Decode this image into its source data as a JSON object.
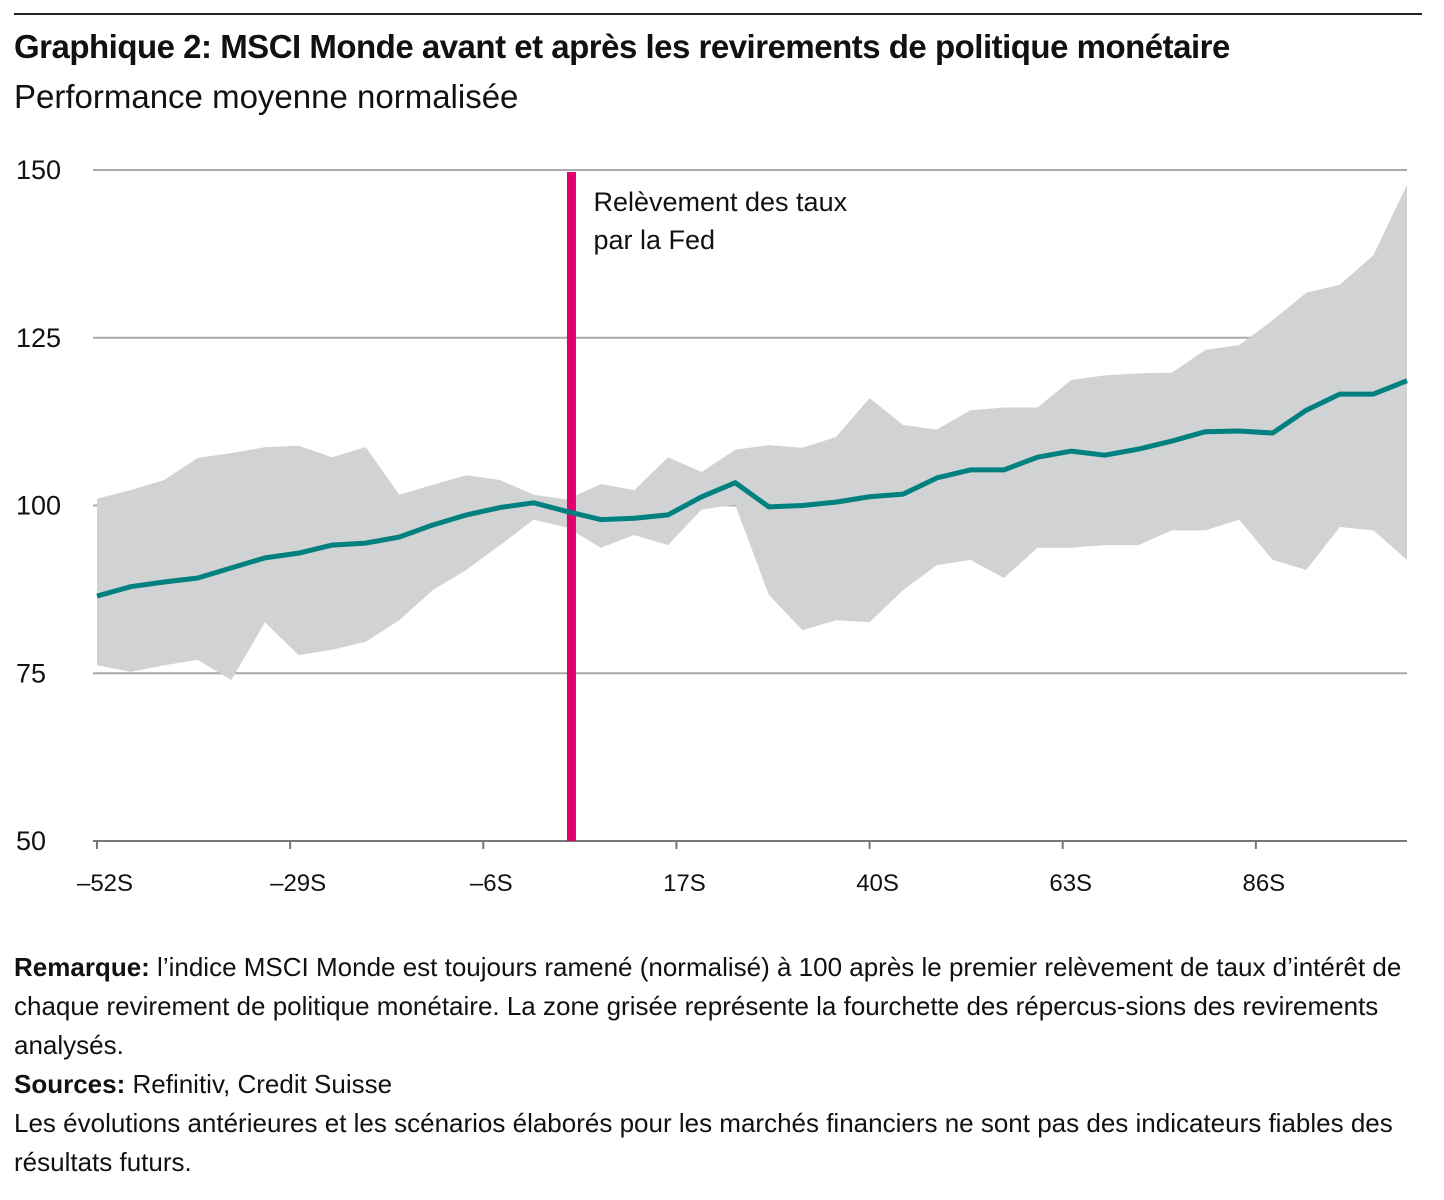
{
  "title": "Graphique 2: MSCI Monde avant et après les revirements de politique monétaire",
  "subtitle": "Performance moyenne normalisée",
  "chart_data": {
    "type": "line",
    "title": "Graphique 2: MSCI Monde avant et après les revirements de politique monétaire",
    "subtitle": "Performance moyenne normalisée",
    "xlim": [
      -52,
      104
    ],
    "ylim": [
      50,
      150
    ],
    "y_ticks": [
      50,
      75,
      100,
      125,
      150
    ],
    "y_tick_labels": [
      "50",
      "75",
      "100",
      "125",
      "150"
    ],
    "x_ticks": [
      -52,
      -29,
      -6,
      17,
      40,
      63,
      86
    ],
    "x_tick_labels": [
      "–52S",
      "–29S",
      "–6S",
      "17S",
      "40S",
      "63S",
      "86S"
    ],
    "grid": "horizontal",
    "x": [
      -52,
      -48,
      -44,
      -40,
      -36,
      -32,
      -28,
      -24,
      -20,
      -16,
      -12,
      -8,
      -4,
      0,
      4,
      8,
      12,
      16,
      20,
      24,
      28,
      32,
      36,
      40,
      44,
      48,
      52,
      56,
      60,
      64,
      68,
      72,
      76,
      80,
      84,
      88,
      92,
      96,
      100,
      104
    ],
    "series": [
      {
        "role": "mean",
        "color": "#00817f",
        "values": [
          86.5,
          87.9,
          88.6,
          89.2,
          90.7,
          92.2,
          92.9,
          94.1,
          94.4,
          95.3,
          97.1,
          98.6,
          99.7,
          100.4,
          99.1,
          97.9,
          98.1,
          98.6,
          101.3,
          103.4,
          99.8,
          100,
          100.5,
          101.3,
          101.7,
          104.1,
          105.3,
          105.3,
          107.2,
          108.1,
          107.5,
          108.4,
          109.6,
          111,
          111.1,
          110.8,
          114.2,
          116.6,
          116.6,
          118.6
        ]
      },
      {
        "role": "range-upper",
        "color": "#d1d2d4",
        "values": [
          101,
          102.3,
          103.8,
          107.1,
          107.8,
          108.7,
          108.9,
          107.2,
          108.7,
          101.6,
          103.1,
          104.5,
          103.8,
          101.6,
          100.9,
          103.2,
          102.3,
          107.2,
          105,
          108.3,
          109,
          108.6,
          110.2,
          116,
          112,
          111.3,
          114.2,
          114.6,
          114.6,
          118.7,
          119.4,
          119.7,
          119.8,
          123.2,
          123.9,
          127.6,
          131.7,
          132.9,
          137.3,
          147.8
        ]
      },
      {
        "role": "range-lower",
        "color": "#d1d2d4",
        "values": [
          76.2,
          75.2,
          76.2,
          77,
          74,
          82.6,
          77.7,
          78.5,
          79.7,
          82.9,
          87.4,
          90.4,
          94.1,
          97.9,
          96.7,
          93.7,
          95.6,
          94.1,
          99.4,
          100.1,
          86.7,
          81.4,
          82.9,
          82.6,
          87.4,
          91.1,
          91.9,
          89.2,
          93.7,
          93.7,
          94.1,
          94.1,
          96.3,
          96.3,
          97.9,
          91.9,
          90.4,
          96.8,
          96.3,
          91.9
        ]
      }
    ],
    "annotation": {
      "x": 4.5,
      "label_line1": "Relèvement des taux",
      "label_line2": "par la Fed",
      "color": "#e0006e"
    }
  },
  "notes": {
    "remark_label": "Remarque:",
    "remark_text": " l’indice MSCI Monde est toujours ramené (normalisé) à 100 après le premier relèvement de taux d’intérêt de chaque revirement de politique monétaire. La zone grisée représente la fourchette des répercus-sions des revirements analysés.",
    "sources_label": "Sources:",
    "sources_text": " Refinitiv, Credit Suisse",
    "disclaimer": "Les évolutions antérieures et les scénarios élaborés pour les marchés financiers ne sont pas des indicateurs fiables des résultats futurs."
  }
}
